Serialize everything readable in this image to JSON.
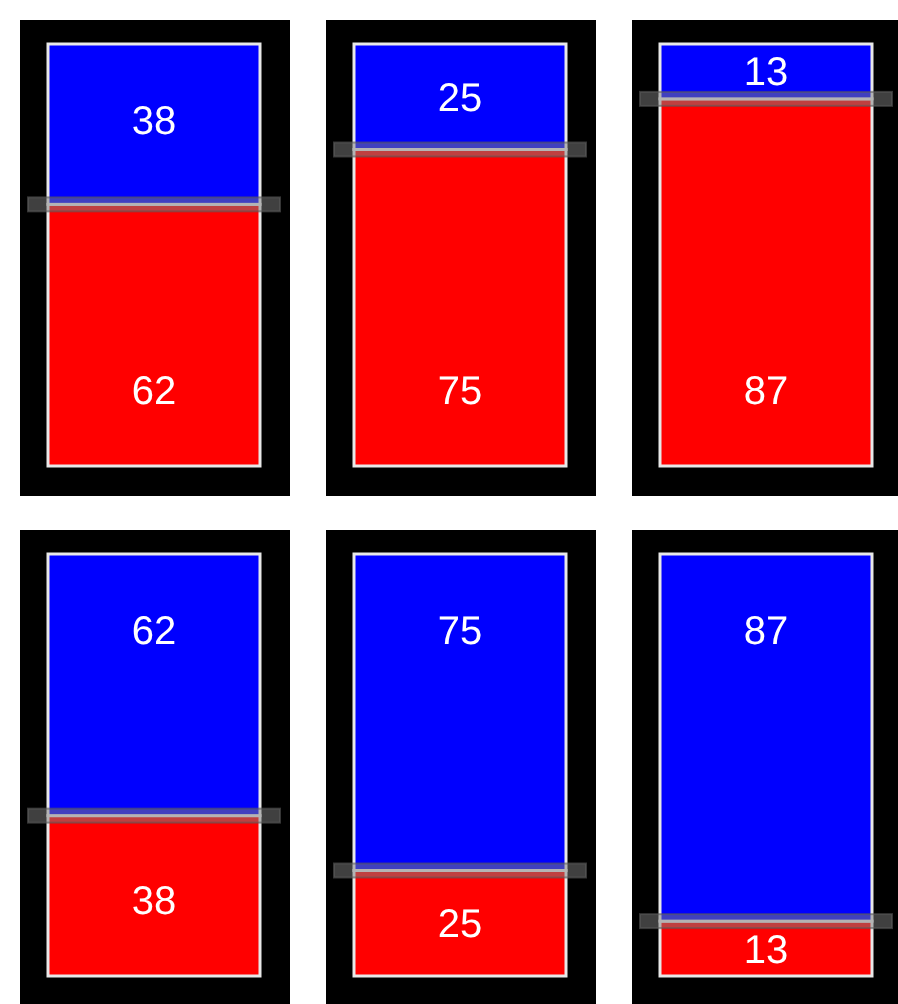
{
  "chart_data": [
    {
      "type": "bar",
      "stacked": true,
      "categories": [
        null
      ],
      "data_labels": true,
      "series": [
        {
          "color": "#ff0000",
          "values": [
            62
          ]
        },
        {
          "color": "#0000ff",
          "values": [
            38
          ]
        }
      ]
    },
    {
      "type": "bar",
      "stacked": true,
      "categories": [
        null
      ],
      "data_labels": true,
      "series": [
        {
          "color": "#ff0000",
          "values": [
            75
          ]
        },
        {
          "color": "#0000ff",
          "values": [
            25
          ]
        }
      ]
    },
    {
      "type": "bar",
      "stacked": true,
      "categories": [
        null
      ],
      "data_labels": true,
      "series": [
        {
          "color": "#ff0000",
          "values": [
            87
          ]
        },
        {
          "color": "#0000ff",
          "values": [
            13
          ]
        }
      ]
    },
    {
      "type": "bar",
      "stacked": true,
      "categories": [
        null
      ],
      "data_labels": true,
      "series": [
        {
          "color": "#ff0000",
          "values": [
            38
          ]
        },
        {
          "color": "#0000ff",
          "values": [
            62
          ]
        }
      ]
    },
    {
      "type": "bar",
      "stacked": true,
      "categories": [
        null
      ],
      "data_labels": true,
      "series": [
        {
          "color": "#ff0000",
          "values": [
            25
          ]
        },
        {
          "color": "#0000ff",
          "values": [
            75
          ]
        }
      ]
    },
    {
      "type": "bar",
      "stacked": true,
      "categories": [
        null
      ],
      "data_labels": true,
      "series": [
        {
          "color": "#ff0000",
          "values": [
            13
          ]
        },
        {
          "color": "#0000ff",
          "values": [
            87
          ]
        }
      ]
    }
  ]
}
